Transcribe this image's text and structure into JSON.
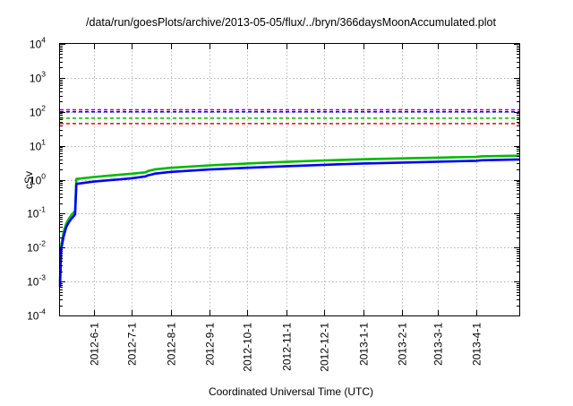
{
  "chart_data": {
    "type": "line",
    "title": "/data/run/goesPlots/archive/2013-05-05/flux/../bryn/366daysMoonAccumulated.plot",
    "xlabel": "Coordinated Universal Time (UTC)",
    "ylabel": "cSv",
    "yscale": "log",
    "ylim": [
      0.0001,
      10000
    ],
    "y_ticks": [
      {
        "base": "10",
        "exp": "-4",
        "value": 0.0001
      },
      {
        "base": "10",
        "exp": "-3",
        "value": 0.001
      },
      {
        "base": "10",
        "exp": "-2",
        "value": 0.01
      },
      {
        "base": "10",
        "exp": "-1",
        "value": 0.1
      },
      {
        "base": "10",
        "exp": "0",
        "value": 1
      },
      {
        "base": "10",
        "exp": "1",
        "value": 10
      },
      {
        "base": "10",
        "exp": "2",
        "value": 100
      },
      {
        "base": "10",
        "exp": "3",
        "value": 1000
      },
      {
        "base": "10",
        "exp": "4",
        "value": 10000
      }
    ],
    "xlim": [
      "2012-05-05",
      "2013-05-05"
    ],
    "x_ticks": [
      {
        "label": "2012-6-1",
        "date": "2012-06-01"
      },
      {
        "label": "2012-7-1",
        "date": "2012-07-01"
      },
      {
        "label": "2012-8-1",
        "date": "2012-08-01"
      },
      {
        "label": "2012-9-1",
        "date": "2012-09-01"
      },
      {
        "label": "2012-10-1",
        "date": "2012-10-01"
      },
      {
        "label": "2012-11-1",
        "date": "2012-11-01"
      },
      {
        "label": "2012-12-1",
        "date": "2012-12-01"
      },
      {
        "label": "2013-1-1",
        "date": "2013-01-01"
      },
      {
        "label": "2013-2-1",
        "date": "2013-02-01"
      },
      {
        "label": "2013-3-1",
        "date": "2013-03-01"
      },
      {
        "label": "2013-4-1",
        "date": "2013-04-01"
      }
    ],
    "grid": true,
    "legend": "none",
    "threshold_lines": [
      {
        "color": "#9400d3",
        "style": "dashed",
        "value": 115
      },
      {
        "color": "#0000ff",
        "style": "dashed",
        "value": 100
      },
      {
        "color": "#00bb00",
        "style": "dashed",
        "value": 65
      },
      {
        "color": "#ff0000",
        "style": "dashed",
        "value": 45
      }
    ],
    "series": [
      {
        "color": "#00bb00",
        "x": [
          "2012-05-05",
          "2012-05-06",
          "2012-05-08",
          "2012-05-10",
          "2012-05-12",
          "2012-05-14",
          "2012-05-16",
          "2012-05-17",
          "2012-05-18",
          "2012-06-01",
          "2012-07-01",
          "2012-07-05",
          "2012-07-12",
          "2012-07-14",
          "2012-07-18",
          "2012-07-19",
          "2012-08-01",
          "2012-09-01",
          "2012-10-01",
          "2012-11-01",
          "2012-12-01",
          "2013-01-01",
          "2013-02-01",
          "2013-03-01",
          "2013-04-01",
          "2013-04-05",
          "2013-05-05"
        ],
        "y": [
          0.001,
          0.012,
          0.03,
          0.05,
          0.07,
          0.09,
          0.11,
          0.12,
          1.05,
          1.2,
          1.5,
          1.55,
          1.65,
          1.8,
          1.95,
          2.0,
          2.25,
          2.65,
          3.0,
          3.35,
          3.7,
          4.0,
          4.25,
          4.45,
          4.7,
          4.9,
          5.1
        ]
      },
      {
        "color": "#0000ff",
        "x": [
          "2012-05-05",
          "2012-05-06",
          "2012-05-08",
          "2012-05-10",
          "2012-05-12",
          "2012-05-14",
          "2012-05-16",
          "2012-05-17",
          "2012-05-18",
          "2012-06-01",
          "2012-07-01",
          "2012-07-05",
          "2012-07-12",
          "2012-07-14",
          "2012-07-18",
          "2012-07-19",
          "2012-08-01",
          "2012-09-01",
          "2012-10-01",
          "2012-11-01",
          "2012-12-01",
          "2013-01-01",
          "2013-02-01",
          "2013-03-01",
          "2013-04-01",
          "2013-04-05",
          "2013-05-05"
        ],
        "y": [
          0.0007,
          0.009,
          0.022,
          0.04,
          0.055,
          0.07,
          0.085,
          0.095,
          0.75,
          0.88,
          1.1,
          1.15,
          1.25,
          1.35,
          1.45,
          1.5,
          1.7,
          2.0,
          2.25,
          2.5,
          2.75,
          3.0,
          3.2,
          3.4,
          3.6,
          3.75,
          3.95
        ]
      }
    ]
  }
}
